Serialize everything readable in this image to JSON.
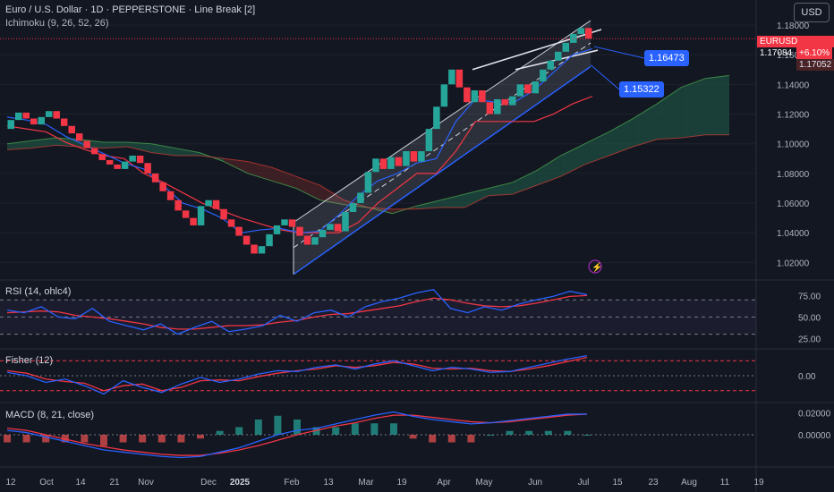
{
  "header": {
    "title": "Euro / U.S. Dollar · 1D · PEPPERSTONE · Line Break [2]",
    "indicator": "Ichimoku (9, 26, 52, 26)",
    "currency_button": "USD"
  },
  "price_tags": {
    "symbol": "EURUSD",
    "last": "1.17084",
    "change": "+6.10%",
    "lower": "1.17052"
  },
  "callouts": {
    "upper": "1.16473",
    "lower": "1.15322"
  },
  "panes": {
    "rsi": "RSI (14, ohlc4)",
    "fisher": "Fisher (12)",
    "macd": "MACD (8, 21, close)"
  },
  "colors": {
    "bull": "#26a69a",
    "bear": "#f23645",
    "blue": "#2962ff",
    "red_line": "#f23645",
    "cloud_green": "#1e4d40",
    "cloud_red": "#4a2327",
    "channel": "#b2b5be",
    "bg": "#131722",
    "grid": "#2a2e39"
  },
  "chart_data": [
    {
      "type": "line-break",
      "pane": "price",
      "y_ticks": [
        "1.18000",
        "1.16000",
        "1.14000",
        "1.12000",
        "1.10000",
        "1.08000",
        "1.06000",
        "1.04000",
        "1.02000"
      ],
      "ylim": [
        1.01,
        1.18
      ],
      "x_ticks": [
        "12",
        "Oct",
        "14",
        "21",
        "Nov",
        "Dec",
        "2025",
        "Feb",
        "13",
        "Mar",
        "19",
        "Apr",
        "May",
        "Jun",
        "Jul",
        "15",
        "23",
        "Aug",
        "11",
        "19"
      ],
      "bricks": [
        [
          1.11,
          1.116,
          1
        ],
        [
          1.116,
          1.121,
          1
        ],
        [
          1.121,
          1.117,
          0
        ],
        [
          1.117,
          1.113,
          0
        ],
        [
          1.113,
          1.118,
          1
        ],
        [
          1.118,
          1.122,
          1
        ],
        [
          1.122,
          1.117,
          0
        ],
        [
          1.117,
          1.112,
          0
        ],
        [
          1.112,
          1.107,
          0
        ],
        [
          1.107,
          1.102,
          0
        ],
        [
          1.102,
          1.097,
          0
        ],
        [
          1.097,
          1.093,
          0
        ],
        [
          1.093,
          1.089,
          0
        ],
        [
          1.089,
          1.086,
          0
        ],
        [
          1.086,
          1.083,
          0
        ],
        [
          1.083,
          1.088,
          1
        ],
        [
          1.088,
          1.092,
          1
        ],
        [
          1.092,
          1.087,
          0
        ],
        [
          1.087,
          1.08,
          0
        ],
        [
          1.08,
          1.074,
          0
        ],
        [
          1.074,
          1.068,
          0
        ],
        [
          1.068,
          1.062,
          0
        ],
        [
          1.062,
          1.055,
          0
        ],
        [
          1.055,
          1.05,
          0
        ],
        [
          1.05,
          1.045,
          0
        ],
        [
          1.045,
          1.058,
          1
        ],
        [
          1.058,
          1.062,
          1
        ],
        [
          1.062,
          1.056,
          0
        ],
        [
          1.056,
          1.049,
          0
        ],
        [
          1.049,
          1.044,
          0
        ],
        [
          1.044,
          1.038,
          0
        ],
        [
          1.038,
          1.032,
          0
        ],
        [
          1.032,
          1.026,
          0
        ],
        [
          1.026,
          1.031,
          1
        ],
        [
          1.031,
          1.039,
          1
        ],
        [
          1.039,
          1.045,
          1
        ],
        [
          1.045,
          1.049,
          1
        ],
        [
          1.049,
          1.044,
          0
        ],
        [
          1.044,
          1.038,
          0
        ],
        [
          1.038,
          1.032,
          0
        ],
        [
          1.032,
          1.037,
          1
        ],
        [
          1.037,
          1.042,
          1
        ],
        [
          1.042,
          1.046,
          1
        ],
        [
          1.046,
          1.041,
          0
        ],
        [
          1.041,
          1.054,
          1
        ],
        [
          1.054,
          1.06,
          1
        ],
        [
          1.06,
          1.067,
          1
        ],
        [
          1.067,
          1.081,
          1
        ],
        [
          1.081,
          1.09,
          1
        ],
        [
          1.09,
          1.083,
          0
        ],
        [
          1.083,
          1.091,
          1
        ],
        [
          1.091,
          1.085,
          0
        ],
        [
          1.085,
          1.095,
          1
        ],
        [
          1.095,
          1.088,
          0
        ],
        [
          1.088,
          1.095,
          1
        ],
        [
          1.095,
          1.11,
          1
        ],
        [
          1.11,
          1.125,
          1
        ],
        [
          1.125,
          1.14,
          1
        ],
        [
          1.14,
          1.15,
          1
        ],
        [
          1.15,
          1.138,
          0
        ],
        [
          1.138,
          1.128,
          0
        ],
        [
          1.128,
          1.136,
          1
        ],
        [
          1.136,
          1.128,
          0
        ],
        [
          1.128,
          1.12,
          0
        ],
        [
          1.12,
          1.13,
          1
        ],
        [
          1.13,
          1.126,
          0
        ],
        [
          1.126,
          1.132,
          1
        ],
        [
          1.132,
          1.14,
          1
        ],
        [
          1.14,
          1.134,
          0
        ],
        [
          1.134,
          1.142,
          1
        ],
        [
          1.142,
          1.15,
          1
        ],
        [
          1.15,
          1.156,
          1
        ],
        [
          1.156,
          1.162,
          1
        ],
        [
          1.162,
          1.168,
          1
        ],
        [
          1.168,
          1.174,
          1
        ],
        [
          1.174,
          1.178,
          1
        ],
        [
          1.178,
          1.171,
          0
        ]
      ],
      "tenkan": [
        1.118,
        1.116,
        1.113,
        1.105,
        1.099,
        1.093,
        1.087,
        1.083,
        1.072,
        1.06,
        1.056,
        1.05,
        1.04,
        1.042,
        1.043,
        1.04,
        1.041,
        1.052,
        1.065,
        1.075,
        1.08,
        1.087,
        1.09,
        1.115,
        1.13,
        1.128,
        1.128,
        1.136,
        1.148,
        1.16,
        1.164
      ],
      "kijun": [
        1.112,
        1.11,
        1.108,
        1.101,
        1.096,
        1.092,
        1.09,
        1.08,
        1.074,
        1.067,
        1.06,
        1.055,
        1.05,
        1.046,
        1.042,
        1.04,
        1.04,
        1.04,
        1.047,
        1.06,
        1.07,
        1.08,
        1.08,
        1.095,
        1.115,
        1.115,
        1.115,
        1.115,
        1.12,
        1.127,
        1.132
      ],
      "span_a": [
        1.1,
        1.102,
        1.104,
        1.103,
        1.101,
        1.101,
        1.1,
        1.097,
        1.094,
        1.088,
        1.08,
        1.075,
        1.07,
        1.062,
        1.059,
        1.057,
        1.053,
        1.058,
        1.062,
        1.066,
        1.07,
        1.074,
        1.082,
        1.092,
        1.1,
        1.108,
        1.117,
        1.127,
        1.138,
        1.144,
        1.146
      ],
      "span_b": [
        1.096,
        1.097,
        1.099,
        1.098,
        1.097,
        1.098,
        1.094,
        1.092,
        1.092,
        1.09,
        1.088,
        1.084,
        1.078,
        1.072,
        1.062,
        1.057,
        1.056,
        1.056,
        1.057,
        1.057,
        1.065,
        1.066,
        1.072,
        1.078,
        1.086,
        1.092,
        1.098,
        1.103,
        1.104,
        1.106,
        1.106
      ],
      "price_lines": [
        1.17084,
        1.16473,
        1.15322
      ]
    },
    {
      "type": "line",
      "pane": "rsi",
      "y_ticks": [
        "75.00",
        "50.00",
        "25.00"
      ],
      "ylim": [
        15,
        90
      ],
      "series": [
        {
          "values": [
            58,
            55,
            62,
            50,
            48,
            60,
            45,
            40,
            35,
            42,
            30,
            38,
            45,
            33,
            36,
            40,
            52,
            45,
            55,
            58,
            50,
            62,
            68,
            72,
            78,
            82,
            60,
            55,
            62,
            58,
            65,
            70,
            74,
            80,
            76
          ]
        },
        {
          "values": [
            55,
            56,
            57,
            56,
            52,
            50,
            48,
            45,
            42,
            38,
            36,
            36,
            38,
            40,
            40,
            41,
            44,
            46,
            50,
            53,
            54,
            57,
            60,
            63,
            68,
            72,
            70,
            66,
            63,
            62,
            63,
            66,
            70,
            74,
            75
          ]
        }
      ]
    },
    {
      "type": "line",
      "pane": "fisher",
      "y_ticks": [
        "0.00"
      ],
      "ylim": [
        -3,
        3
      ],
      "series": [
        {
          "values": [
            0.4,
            0.0,
            -0.8,
            -0.4,
            -1.2,
            -2.2,
            -0.6,
            -1.4,
            -2.0,
            -1.0,
            -0.2,
            -0.8,
            -0.4,
            0.2,
            0.6,
            0.5,
            1.0,
            1.3,
            0.8,
            1.4,
            1.8,
            1.2,
            0.6,
            1.0,
            0.8,
            0.4,
            0.5,
            1.0,
            1.5,
            2.0,
            2.4
          ]
        },
        {
          "values": [
            0.6,
            0.3,
            -0.4,
            -0.7,
            -0.9,
            -1.8,
            -1.2,
            -1.0,
            -1.8,
            -1.4,
            -0.6,
            -0.5,
            -0.6,
            -0.1,
            0.3,
            0.6,
            0.8,
            1.2,
            1.0,
            1.2,
            1.6,
            1.4,
            0.9,
            0.8,
            0.9,
            0.6,
            0.5,
            0.8,
            1.2,
            1.7,
            2.2
          ]
        }
      ]
    },
    {
      "type": "histogram+line",
      "pane": "macd",
      "y_ticks": [
        "0.02000",
        "0.00000"
      ],
      "ylim": [
        -0.028,
        0.028
      ],
      "series": [
        {
          "values": [
            0.004,
            0.002,
            -0.002,
            -0.006,
            -0.01,
            -0.014,
            -0.016,
            -0.018,
            -0.02,
            -0.021,
            -0.02,
            -0.016,
            -0.012,
            -0.006,
            0.0,
            0.004,
            0.006,
            0.01,
            0.014,
            0.018,
            0.021,
            0.017,
            0.014,
            0.012,
            0.01,
            0.011,
            0.013,
            0.015,
            0.017,
            0.019,
            0.019
          ]
        },
        {
          "values": [
            0.006,
            0.004,
            0.0,
            -0.004,
            -0.008,
            -0.011,
            -0.014,
            -0.016,
            -0.018,
            -0.019,
            -0.019,
            -0.017,
            -0.014,
            -0.01,
            -0.005,
            0.0,
            0.004,
            0.008,
            0.011,
            0.015,
            0.018,
            0.018,
            0.016,
            0.014,
            0.012,
            0.011,
            0.012,
            0.014,
            0.016,
            0.018,
            0.019
          ]
        }
      ]
    }
  ]
}
